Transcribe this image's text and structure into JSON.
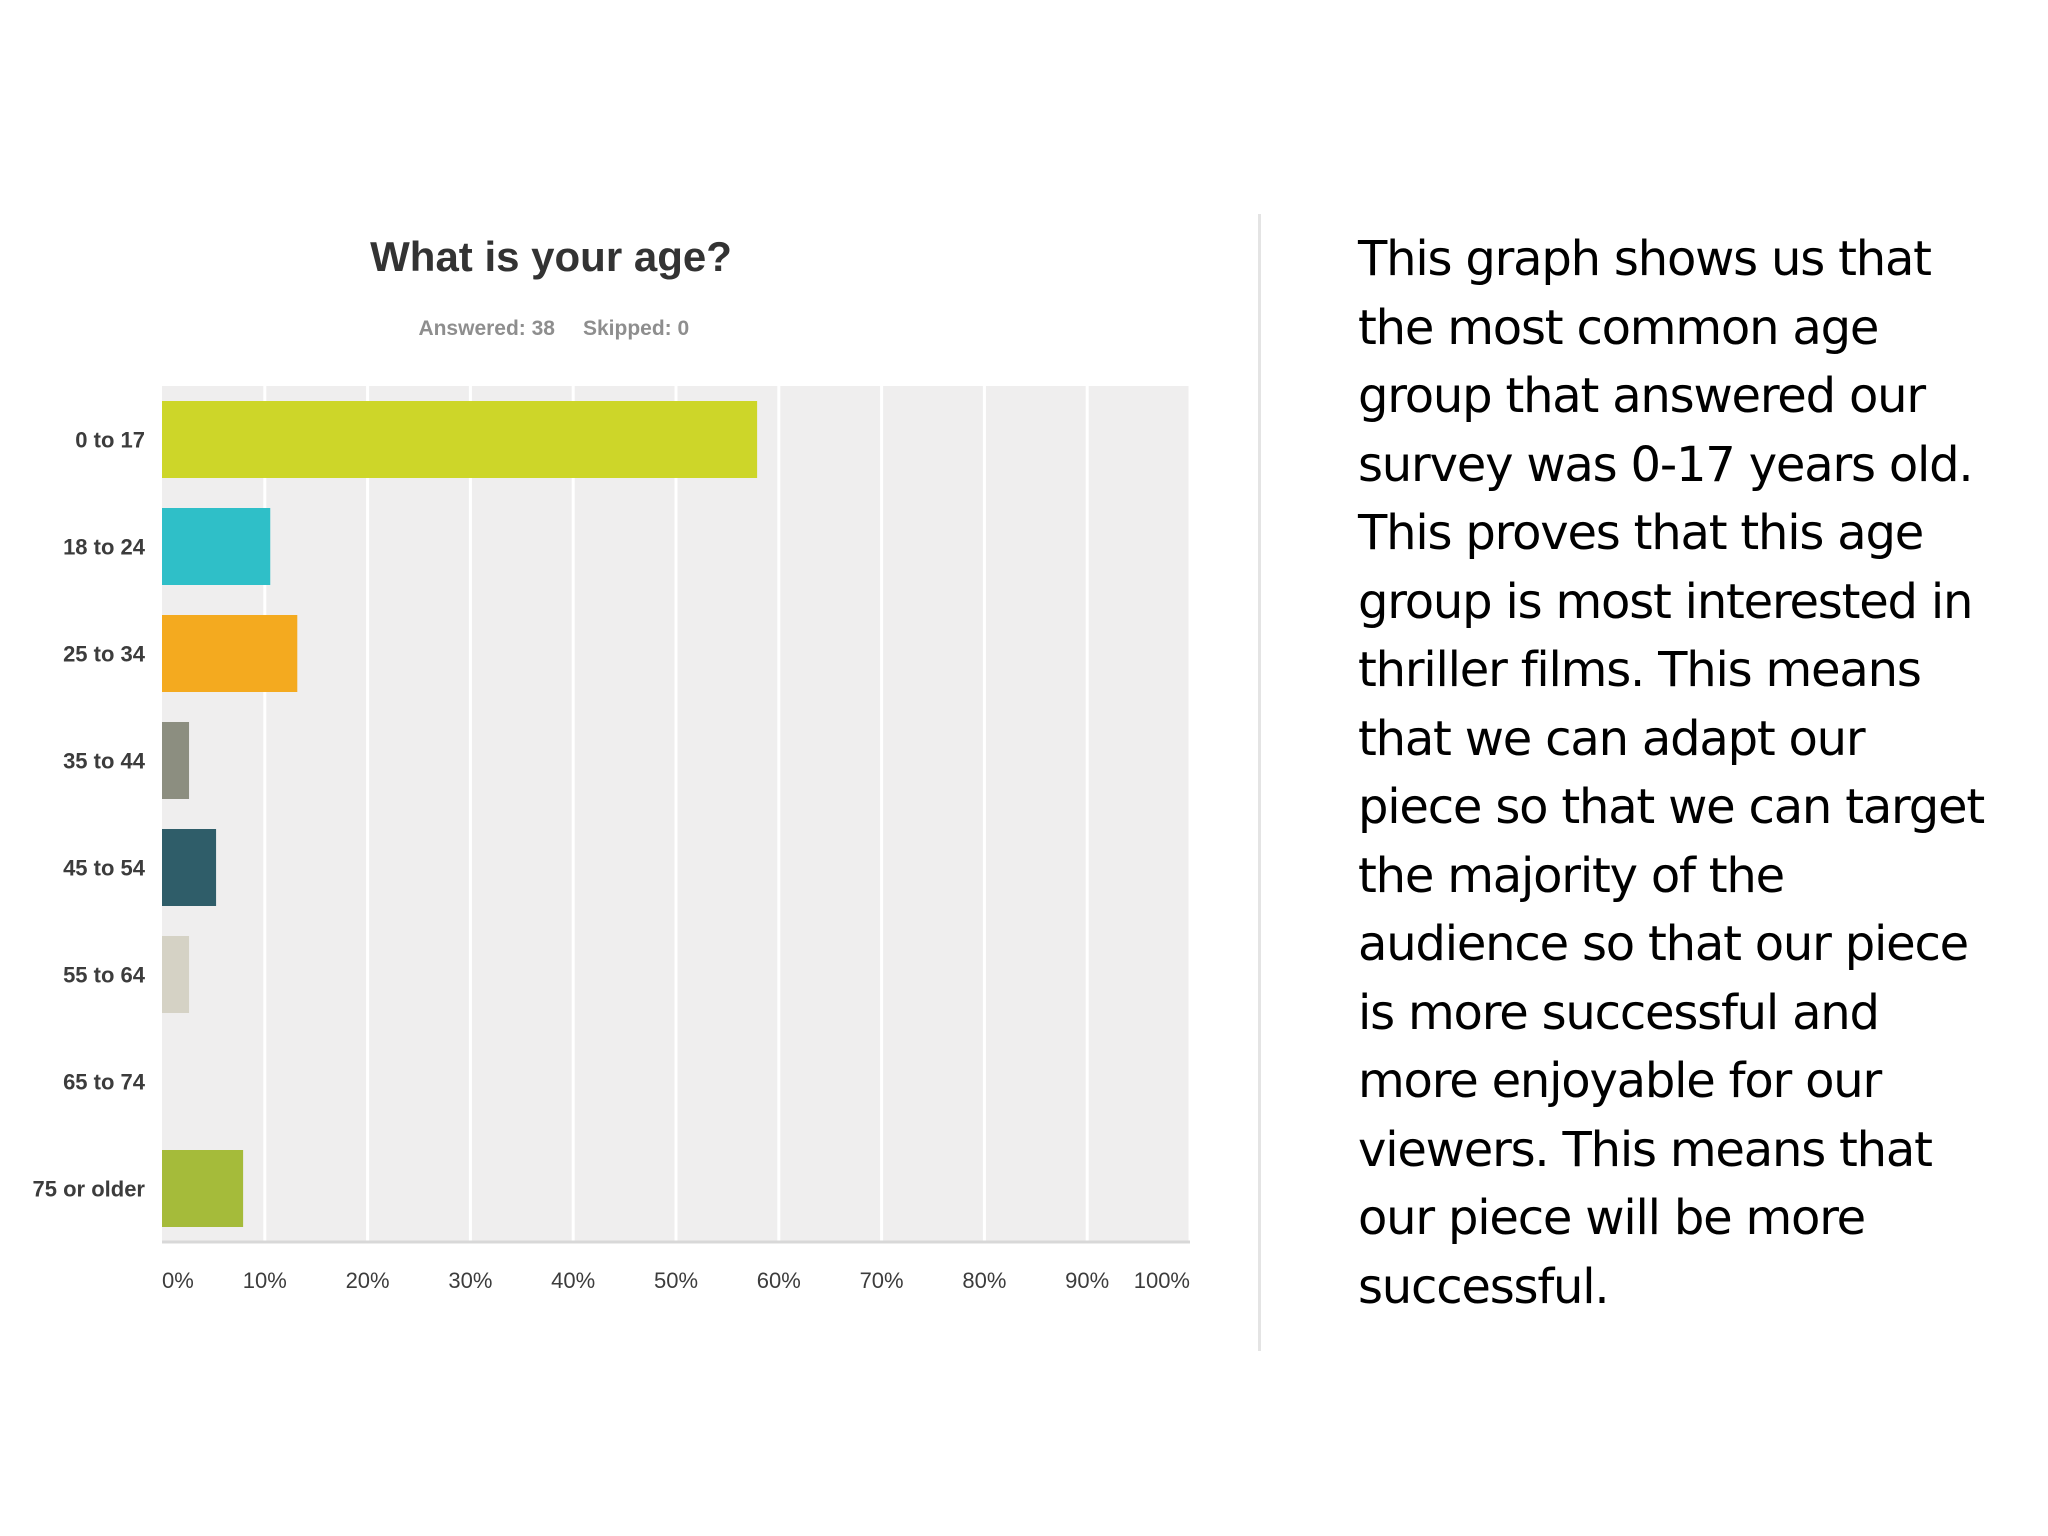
{
  "colors": {
    "plot_background": "#efeeee",
    "gridline": "#ffffff",
    "title_text": "#333333",
    "meta_text": "#8e8e8e",
    "tick_text": "#3c3c3c",
    "commentary_text": "#000000",
    "divider": "#e4e4e4"
  },
  "chart_data": {
    "type": "bar",
    "orientation": "horizontal",
    "title": "What is your age?",
    "subtitle": {
      "answered": "Answered: 38",
      "skipped": "Skipped: 0"
    },
    "categories": [
      "0 to 17",
      "18 to 24",
      "25 to 34",
      "35 to 44",
      "45 to 54",
      "55 to 64",
      "65 to 74",
      "75 or older"
    ],
    "values": [
      57.89,
      10.53,
      13.16,
      2.63,
      5.26,
      2.63,
      0,
      7.89
    ],
    "value_unit": "%",
    "bar_colors": [
      "#cdd629",
      "#2fbfc8",
      "#f4aa1f",
      "#8c8e80",
      "#2f5d69",
      "#d5d2c5",
      "#cccccc",
      "#a5bb3a"
    ],
    "x_ticks": [
      "0%",
      "10%",
      "20%",
      "30%",
      "40%",
      "50%",
      "60%",
      "70%",
      "80%",
      "90%",
      "100%"
    ],
    "xlim": [
      0,
      100
    ],
    "grid": true,
    "legend": "none"
  },
  "commentary": {
    "lines": [
      "This graph shows us that",
      "the most common age",
      "group that answered our",
      "survey was 0-17 years old.",
      "This proves that this age",
      "group is most interested in",
      "thriller films. This means",
      "that we can adapt our",
      "piece so that we can target",
      "the majority of the",
      "audience so that our piece",
      "is more successful and",
      "more enjoyable for our",
      "viewers. This means that",
      "our piece will be more",
      "successful."
    ]
  }
}
